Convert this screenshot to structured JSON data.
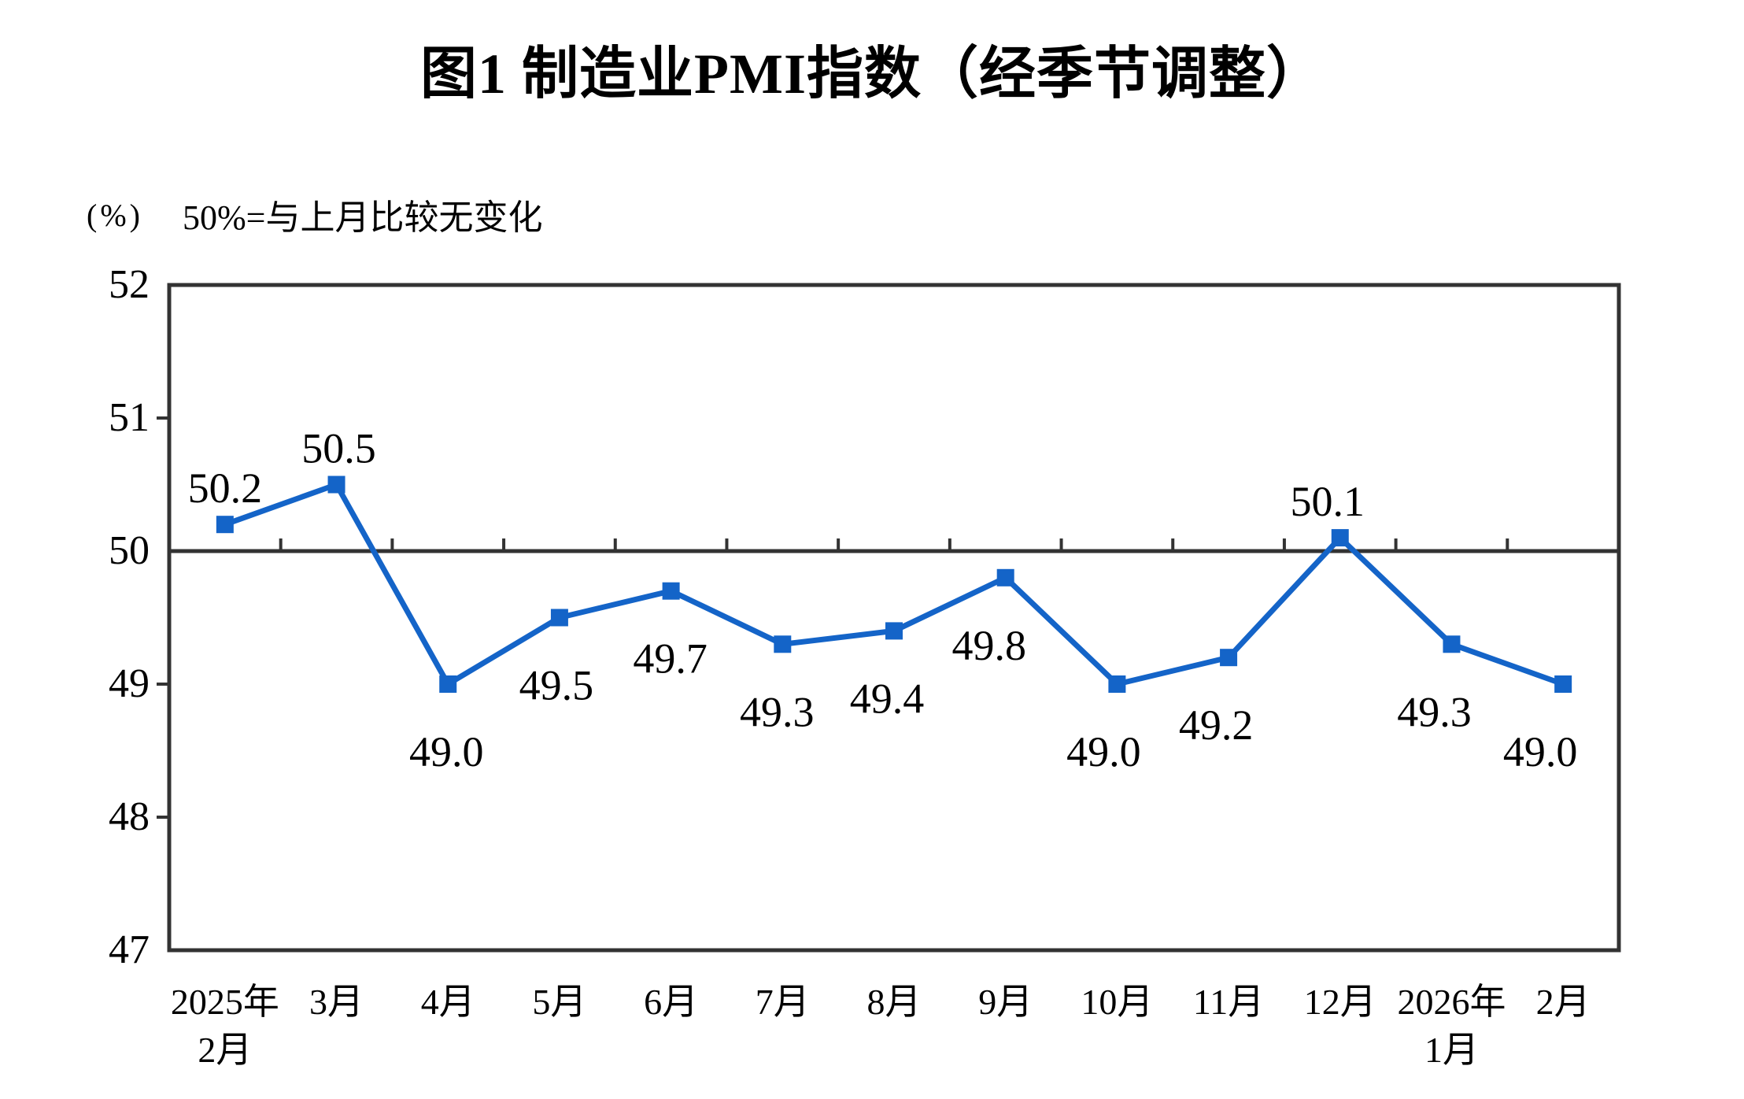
{
  "page_title": "图1 制造业PMI指数（经季节调整）",
  "y_axis_unit_label": "(%)",
  "reference_note": "50%=与上月比较无变化",
  "chart_data": {
    "type": "line",
    "title": "图1 制造业PMI指数（经季节调整）",
    "note": "50%=与上月比较无变化",
    "unit": "%",
    "categories": [
      "2025年2月",
      "3月",
      "4月",
      "5月",
      "6月",
      "7月",
      "8月",
      "9月",
      "10月",
      "11月",
      "12月",
      "2026年1月",
      "2月"
    ],
    "category_axis_labels": [
      "2025年\n2月",
      "3月",
      "4月",
      "5月",
      "6月",
      "7月",
      "8月",
      "9月",
      "10月",
      "11月",
      "12月",
      "2026年\n1月",
      "2月"
    ],
    "values": [
      50.2,
      50.5,
      49.0,
      49.5,
      49.7,
      49.3,
      49.4,
      49.8,
      49.0,
      49.2,
      50.1,
      49.3,
      49.0
    ],
    "point_labels": [
      "50.2",
      "50.5",
      "49.0",
      "49.5",
      "49.7",
      "49.3",
      "49.4",
      "49.8",
      "49.0",
      "49.2",
      "50.1",
      "49.3",
      "49.0"
    ],
    "label_sides": [
      "above",
      "above",
      "below",
      "below",
      "below",
      "below",
      "below",
      "below",
      "below",
      "below",
      "above",
      "below",
      "below"
    ],
    "label_dx": [
      0,
      3,
      -2,
      -4,
      -1,
      -7,
      -9,
      -21,
      -17,
      -16,
      -16,
      -22,
      -29
    ],
    "ylim": [
      47,
      52
    ],
    "y_ticks": [
      52,
      51,
      50,
      49,
      48,
      47
    ],
    "y_tick_labels": [
      "52",
      "51",
      "50",
      "49",
      "48",
      "47"
    ],
    "reference_line": 50,
    "grid": false,
    "legend": false,
    "line_color": "#1464C8",
    "marker": "square",
    "marker_color": "#1464C8",
    "axis_color": "#333333",
    "label_color": "#000000"
  }
}
